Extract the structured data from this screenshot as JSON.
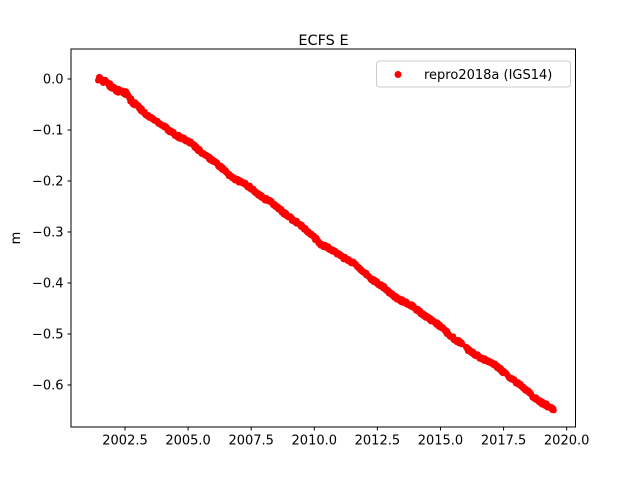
{
  "figure": {
    "background": "#ffffff",
    "spine_color": "#000000"
  },
  "chart_data": {
    "type": "scatter",
    "title": "ECFS E",
    "xlabel": "",
    "ylabel": "m",
    "grid": false,
    "legend_position": "upper right",
    "legend": [
      {
        "label": "repro2018a (IGS14)",
        "color": "#ff0000",
        "marker": "dot"
      }
    ],
    "xlim": [
      2000.36,
      2020.35
    ],
    "ylim": [
      -0.6824,
      0.0588
    ],
    "xticks": [
      2002.5,
      2005.0,
      2007.5,
      2010.0,
      2012.5,
      2015.0,
      2017.5,
      2020.0
    ],
    "xtick_labels": [
      "2002.5",
      "2005.0",
      "2007.5",
      "2010.0",
      "2012.5",
      "2015.0",
      "2017.5",
      "2020.0"
    ],
    "yticks": [
      0.0,
      -0.1,
      -0.2,
      -0.3,
      -0.4,
      -0.5,
      -0.6
    ],
    "ytick_labels": [
      "0.0",
      "−0.1",
      "−0.2",
      "−0.3",
      "−0.4",
      "−0.5",
      "−0.6"
    ],
    "series": [
      {
        "name": "repro2018a (IGS14)",
        "color": "#ff0000",
        "marker_radius": 3,
        "x_start": 2001.43,
        "x_end": 2019.5,
        "sample_step": 0.02,
        "scatter_jitter": 0.0035,
        "trend_m_per_yr": -0.0361,
        "gaps": [
          [
            2015.88,
            2016.0
          ]
        ],
        "anchors": [
          [
            2001.43,
            0.003
          ],
          [
            2002.0,
            -0.018
          ],
          [
            2002.55,
            -0.03
          ],
          [
            2002.7,
            -0.044
          ],
          [
            2003.0,
            -0.055
          ],
          [
            2004.0,
            -0.09
          ],
          [
            2005.0,
            -0.125
          ],
          [
            2006.0,
            -0.162
          ],
          [
            2007.0,
            -0.198
          ],
          [
            2007.45,
            -0.212
          ],
          [
            2008.0,
            -0.235
          ],
          [
            2009.0,
            -0.27
          ],
          [
            2010.0,
            -0.307
          ],
          [
            2010.3,
            -0.325
          ],
          [
            2011.0,
            -0.345
          ],
          [
            2012.0,
            -0.38
          ],
          [
            2013.0,
            -0.417
          ],
          [
            2014.0,
            -0.452
          ],
          [
            2015.0,
            -0.487
          ],
          [
            2015.88,
            -0.518
          ],
          [
            2016.0,
            -0.527
          ],
          [
            2017.0,
            -0.558
          ],
          [
            2018.0,
            -0.595
          ],
          [
            2019.0,
            -0.632
          ],
          [
            2019.5,
            -0.649
          ]
        ]
      }
    ]
  }
}
